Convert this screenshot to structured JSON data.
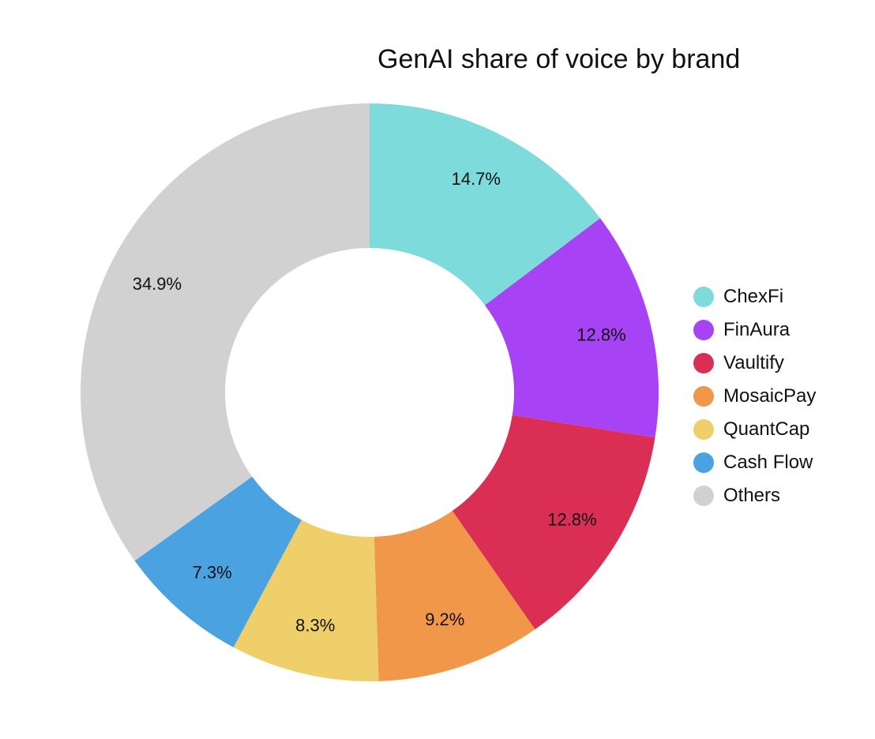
{
  "chart_data": {
    "type": "pie",
    "subtype": "donut",
    "title": "GenAI share of voice by brand",
    "categories": [
      "ChexFi",
      "FinAura",
      "Vaultify",
      "MosaicPay",
      "QuantCap",
      "Cash Flow",
      "Others"
    ],
    "values": [
      14.7,
      12.8,
      12.8,
      9.2,
      8.3,
      7.3,
      34.9
    ],
    "labels": [
      "14.7%",
      "12.8%",
      "12.8%",
      "9.2%",
      "8.3%",
      "7.3%",
      "34.9%"
    ],
    "colors": [
      "#7ddbdb",
      "#a742f5",
      "#db2e55",
      "#f0974a",
      "#eecf6a",
      "#4aa3e0",
      "#d1d1d1"
    ],
    "legend_position": "right",
    "xlabel": "",
    "ylabel": ""
  }
}
